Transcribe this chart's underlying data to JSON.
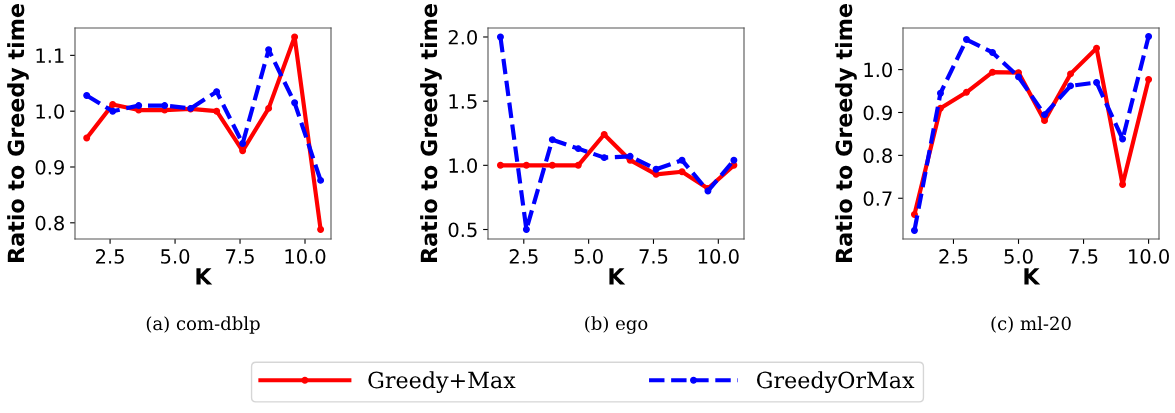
{
  "chart_data": [
    {
      "type": "line",
      "xlabel": "K",
      "ylabel": "Ratio to Greedy time",
      "annotations": [
        "(a) com-dblp"
      ],
      "x": [
        1.6,
        2.6,
        3.6,
        4.6,
        5.6,
        6.6,
        7.6,
        8.6,
        9.6,
        10.6
      ],
      "xlim": [
        1.15,
        11.0
      ],
      "xticks": [
        {
          "value": 2.5,
          "label": "2.5"
        },
        {
          "value": 5.0,
          "label": "5.0"
        },
        {
          "value": 7.5,
          "label": "7.5"
        },
        {
          "value": 10.0,
          "label": "10.0"
        }
      ],
      "ylim": [
        0.771,
        1.149
      ],
      "yticks": [
        {
          "value": 0.8,
          "label": "0.8"
        },
        {
          "value": 0.9,
          "label": "0.9"
        },
        {
          "value": 1.0,
          "label": "1.0"
        },
        {
          "value": 1.1,
          "label": "1.1"
        }
      ],
      "marker": "circle",
      "legend": "bottom",
      "series": [
        {
          "name": "Greedy+Max",
          "color": "#ff0000",
          "line_style": "solid",
          "values": [
            0.952,
            1.012,
            1.002,
            1.002,
            1.004,
            1.0,
            0.929,
            1.005,
            1.133,
            0.788
          ]
        },
        {
          "name": "GreedyOrMax",
          "color": "#0000ff",
          "line_style": "dashed",
          "values": [
            1.028,
            1.0,
            1.01,
            1.01,
            1.005,
            1.035,
            0.942,
            1.11,
            1.015,
            0.876
          ]
        }
      ]
    },
    {
      "type": "line",
      "xlabel": "K",
      "ylabel": "Ratio to Greedy time",
      "annotations": [
        "(b) ego"
      ],
      "x": [
        1.6,
        2.6,
        3.6,
        4.6,
        5.6,
        6.6,
        7.6,
        8.6,
        9.6,
        10.6
      ],
      "xlim": [
        1.12,
        10.99
      ],
      "xticks": [
        {
          "value": 2.5,
          "label": "2.5"
        },
        {
          "value": 5.0,
          "label": "5.0"
        },
        {
          "value": 7.5,
          "label": "7.5"
        },
        {
          "value": 10.0,
          "label": "10.0"
        }
      ],
      "ylim": [
        0.426,
        2.07
      ],
      "yticks": [
        {
          "value": 0.5,
          "label": "0.5"
        },
        {
          "value": 1.0,
          "label": "1.0"
        },
        {
          "value": 1.5,
          "label": "1.5"
        },
        {
          "value": 2.0,
          "label": "2.0"
        }
      ],
      "marker": "circle",
      "series": [
        {
          "color": "#ff0000",
          "line_style": "solid",
          "values": [
            1.0,
            1.0,
            1.0,
            1.0,
            1.24,
            1.04,
            0.93,
            0.95,
            0.82,
            1.0
          ]
        },
        {
          "color": "#0000ff",
          "line_style": "dashed",
          "values": [
            2.0,
            0.5,
            1.2,
            1.13,
            1.06,
            1.07,
            0.97,
            1.04,
            0.8,
            1.04
          ]
        }
      ]
    },
    {
      "type": "line",
      "xlabel": "K",
      "ylabel": "Ratio to Greedy time",
      "annotations": [
        "(c) ml-20"
      ],
      "x": [
        1,
        2,
        3,
        4,
        5,
        6,
        7,
        8,
        9,
        10
      ],
      "xlim": [
        0.56,
        10.4
      ],
      "xticks": [
        {
          "value": 2.5,
          "label": "2.5"
        },
        {
          "value": 5.0,
          "label": "5.0"
        },
        {
          "value": 7.5,
          "label": "7.5"
        },
        {
          "value": 10.0,
          "label": "10.0"
        }
      ],
      "ylim": [
        0.605,
        1.097
      ],
      "yticks": [
        {
          "value": 0.7,
          "label": "0.7"
        },
        {
          "value": 0.8,
          "label": "0.8"
        },
        {
          "value": 0.9,
          "label": "0.9"
        },
        {
          "value": 1.0,
          "label": "1.0"
        }
      ],
      "marker": "circle",
      "series": [
        {
          "color": "#ff0000",
          "line_style": "solid",
          "values": [
            0.662,
            0.91,
            0.947,
            0.994,
            0.993,
            0.881,
            0.99,
            1.05,
            0.732,
            0.977
          ]
        },
        {
          "color": "#0000ff",
          "line_style": "dashed",
          "values": [
            0.625,
            0.945,
            1.07,
            1.04,
            0.983,
            0.895,
            0.962,
            0.97,
            0.838,
            1.077
          ]
        }
      ]
    }
  ]
}
